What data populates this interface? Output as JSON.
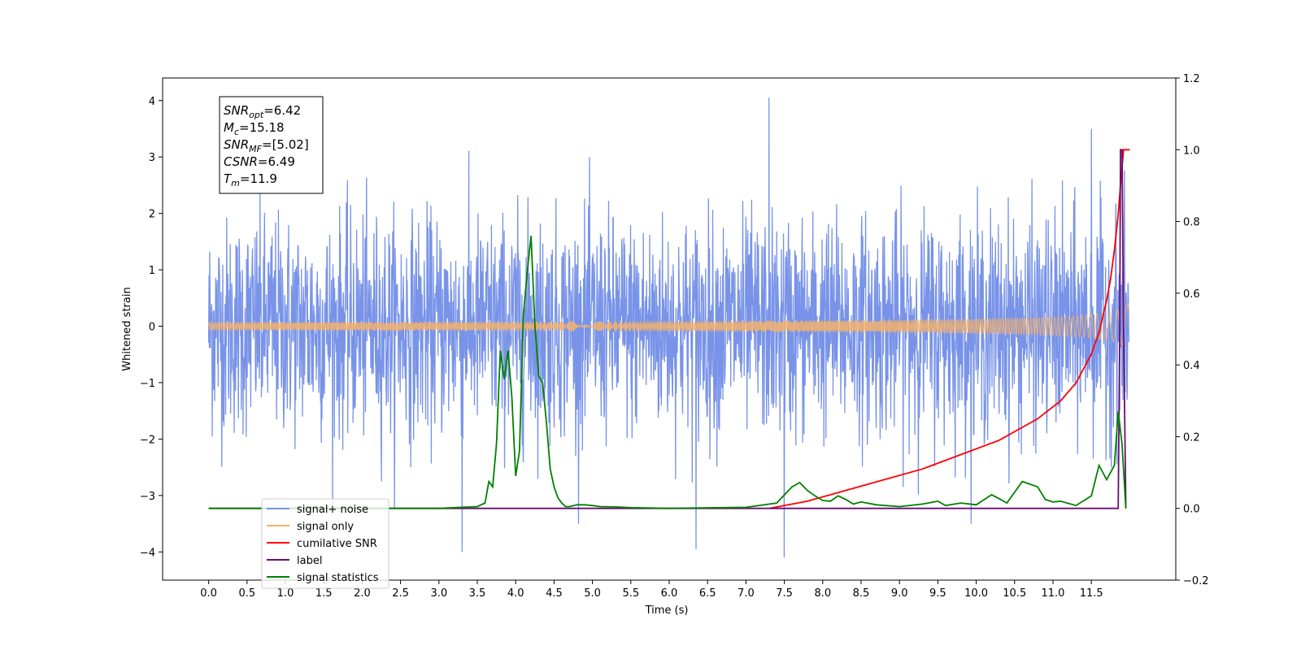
{
  "chart_data": {
    "type": "line",
    "xlabel": "Time (s)",
    "ylabel": "Whitened strain",
    "xlim": [
      -0.6,
      12.6
    ],
    "ylim_left": [
      -4.5,
      4.4
    ],
    "ylim_right": [
      -0.2,
      1.2
    ],
    "x_ticks": [
      "0.0",
      "0.5",
      "1.0",
      "1.5",
      "2.0",
      "2.5",
      "3.0",
      "3.5",
      "4.0",
      "4.5",
      "5.0",
      "5.5",
      "6.0",
      "6.5",
      "7.0",
      "7.5",
      "8.0",
      "8.5",
      "9.0",
      "9.5",
      "10.0",
      "10.5",
      "11.0",
      "11.5"
    ],
    "y_ticks_left": [
      "−4",
      "−3",
      "−2",
      "−1",
      "0",
      "1",
      "2",
      "3",
      "4"
    ],
    "y_ticks_right": [
      "−0.2",
      "0.0",
      "0.2",
      "0.4",
      "0.6",
      "0.8",
      "1.0",
      "1.2"
    ],
    "legend_position": "lower left",
    "series": [
      {
        "name": "signal+ noise",
        "color": "#7893e8",
        "axis": "left",
        "kind": "noise",
        "range": [
          0.0,
          11.99
        ],
        "std": 0.95,
        "peak_max": 4.05,
        "peak_min": -4.1
      },
      {
        "name": "signal only",
        "color": "#f5b26b",
        "axis": "left",
        "kind": "chirp",
        "range": [
          0.0,
          11.99
        ],
        "end_amplitude": 0.55
      },
      {
        "name": "cumilative SNR",
        "color": "#ff0000",
        "axis": "right",
        "x": [
          7.3,
          7.8,
          8.3,
          8.8,
          9.3,
          9.8,
          10.3,
          10.8,
          11.1,
          11.3,
          11.5,
          11.6,
          11.7,
          11.75,
          11.8,
          11.85,
          11.88,
          11.92,
          11.96,
          12.0
        ],
        "y": [
          0.0,
          0.02,
          0.05,
          0.08,
          0.11,
          0.15,
          0.19,
          0.25,
          0.3,
          0.35,
          0.43,
          0.49,
          0.58,
          0.64,
          0.72,
          0.82,
          0.9,
          1.0,
          1.0,
          1.0
        ]
      },
      {
        "name": "label",
        "color": "#6a0d6e",
        "axis": "right",
        "x": [
          0.0,
          11.85,
          11.87,
          11.88,
          11.9,
          11.92,
          11.95
        ],
        "y": [
          0.0,
          0.0,
          0.5,
          1.0,
          1.0,
          0.5,
          0.0
        ]
      },
      {
        "name": "signal statistics",
        "color": "#008000",
        "axis": "right",
        "x": [
          0.0,
          3.0,
          3.5,
          3.6,
          3.65,
          3.7,
          3.75,
          3.8,
          3.85,
          3.9,
          3.95,
          4.0,
          4.05,
          4.1,
          4.15,
          4.2,
          4.25,
          4.3,
          4.35,
          4.4,
          4.45,
          4.5,
          4.55,
          4.6,
          4.65,
          4.7,
          4.8,
          4.9,
          5.0,
          5.1,
          5.3,
          5.5,
          6.0,
          7.0,
          7.4,
          7.6,
          7.7,
          7.8,
          7.9,
          8.0,
          8.1,
          8.2,
          8.3,
          8.4,
          8.5,
          8.7,
          9.0,
          9.3,
          9.5,
          9.6,
          9.8,
          10.0,
          10.2,
          10.3,
          10.4,
          10.6,
          10.8,
          10.9,
          11.0,
          11.1,
          11.3,
          11.5,
          11.6,
          11.7,
          11.8,
          11.85,
          11.9,
          11.95
        ],
        "y": [
          0.0,
          0.0,
          0.005,
          0.015,
          0.075,
          0.06,
          0.18,
          0.44,
          0.36,
          0.44,
          0.31,
          0.09,
          0.16,
          0.54,
          0.66,
          0.76,
          0.51,
          0.37,
          0.35,
          0.24,
          0.11,
          0.06,
          0.03,
          0.015,
          0.005,
          0.005,
          0.01,
          0.01,
          0.008,
          0.005,
          0.004,
          0.002,
          0.0,
          0.003,
          0.015,
          0.06,
          0.072,
          0.05,
          0.035,
          0.022,
          0.02,
          0.035,
          0.025,
          0.012,
          0.018,
          0.01,
          0.005,
          0.012,
          0.02,
          0.008,
          0.015,
          0.01,
          0.038,
          0.027,
          0.015,
          0.075,
          0.06,
          0.025,
          0.018,
          0.02,
          0.008,
          0.035,
          0.12,
          0.08,
          0.12,
          0.27,
          0.18,
          0.0
        ]
      }
    ],
    "annotation": {
      "lines": [
        {
          "sym": "SNR",
          "sub": "opt",
          "val": "=6.42"
        },
        {
          "sym": "M",
          "sub": "c",
          "val": "=15.18"
        },
        {
          "sym": "SNR",
          "sub": "MF",
          "val": "=[5.02]"
        },
        {
          "sym": "CSNR",
          "sub": "",
          "val": "=6.49"
        },
        {
          "sym": "T",
          "sub": "m",
          "val": "=11.9"
        }
      ]
    }
  }
}
